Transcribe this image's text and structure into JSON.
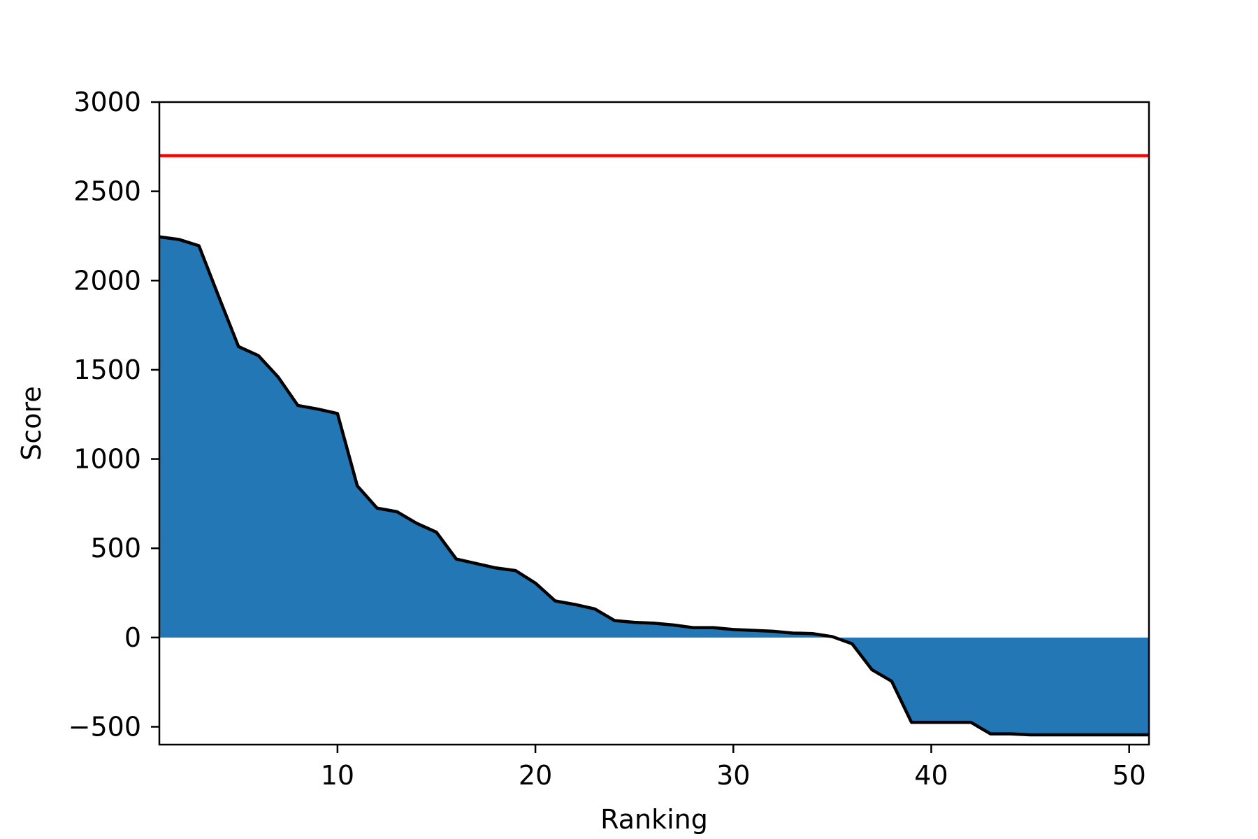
{
  "chart_data": {
    "type": "area",
    "xlabel": "Ranking",
    "ylabel": "Score",
    "xlim": [
      1,
      51
    ],
    "ylim": [
      -600,
      3000
    ],
    "xticks": [
      10,
      20,
      30,
      40,
      50
    ],
    "yticks": [
      -500,
      0,
      500,
      1000,
      1500,
      2000,
      2500,
      3000
    ],
    "ytick_labels": [
      "−500",
      "0",
      "500",
      "1000",
      "1500",
      "2000",
      "2500",
      "3000"
    ],
    "grid": false,
    "reference_line": {
      "y": 2700,
      "color": "#ff0000"
    },
    "series": [
      {
        "fill_color": "#2277b4",
        "line_color": "#000000",
        "x": [
          1,
          2,
          3,
          4,
          5,
          6,
          7,
          8,
          9,
          10,
          11,
          12,
          13,
          14,
          15,
          16,
          17,
          18,
          19,
          20,
          21,
          22,
          23,
          24,
          25,
          26,
          27,
          28,
          29,
          30,
          31,
          32,
          33,
          34,
          35,
          36,
          37,
          38,
          39,
          40,
          41,
          42,
          43,
          44,
          45,
          46,
          47,
          48,
          49,
          50,
          51
        ],
        "y": [
          2245,
          2230,
          2195,
          1910,
          1630,
          1580,
          1460,
          1300,
          1280,
          1255,
          850,
          725,
          705,
          640,
          590,
          440,
          415,
          390,
          375,
          305,
          205,
          185,
          160,
          95,
          85,
          80,
          70,
          55,
          55,
          45,
          40,
          35,
          25,
          22,
          5,
          -35,
          -180,
          -245,
          -475,
          -475,
          -475,
          -475,
          -540,
          -540,
          -545,
          -545,
          -545,
          -545,
          -545,
          -545,
          -545
        ]
      }
    ]
  }
}
